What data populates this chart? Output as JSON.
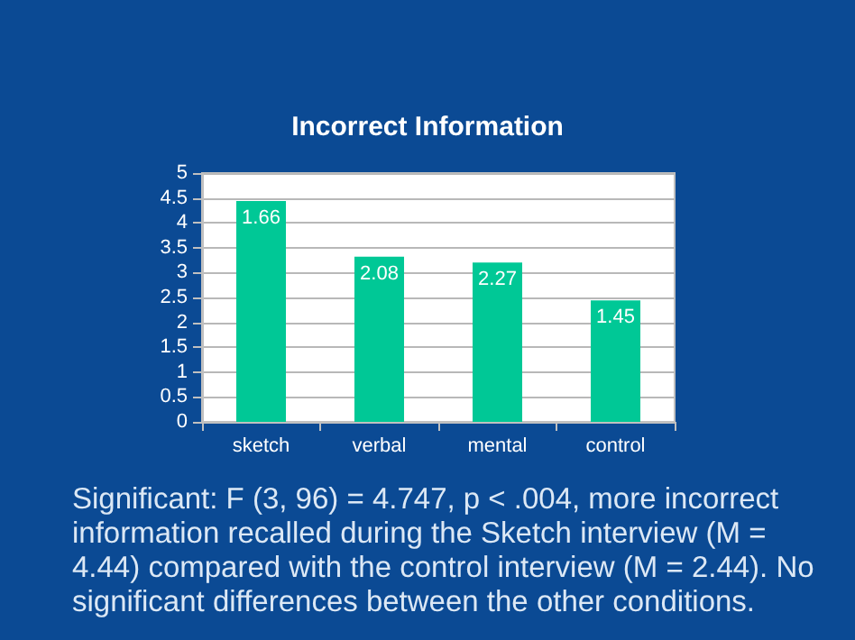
{
  "chart_data": {
    "type": "bar",
    "title": "Incorrect Information",
    "categories": [
      "sketch",
      "verbal",
      "mental",
      "control"
    ],
    "values": [
      4.44,
      3.32,
      3.2,
      2.44
    ],
    "color": "#00c896",
    "ylim": [
      0,
      5
    ],
    "yticks": [
      0,
      0.5,
      1,
      1.5,
      2,
      2.5,
      3,
      3.5,
      4,
      4.5,
      5
    ],
    "grid": "y",
    "annotations": [
      {
        "text": "1.66",
        "x": "sketch",
        "y": 4.44
      },
      {
        "text": "2.08",
        "x": "verbal",
        "y": 3.32
      },
      {
        "text": "2.27",
        "x": "mental",
        "y": 3.2
      },
      {
        "text": "1.45",
        "x": "control",
        "y": 2.44
      },
      "Significant: F (3, 96) = 4.747, p < .004, more incorrect information recalled during the Sketch interview (M = 4.44) compared with the control interview (M = 2.44). No significant differences between the other conditions."
    ]
  }
}
